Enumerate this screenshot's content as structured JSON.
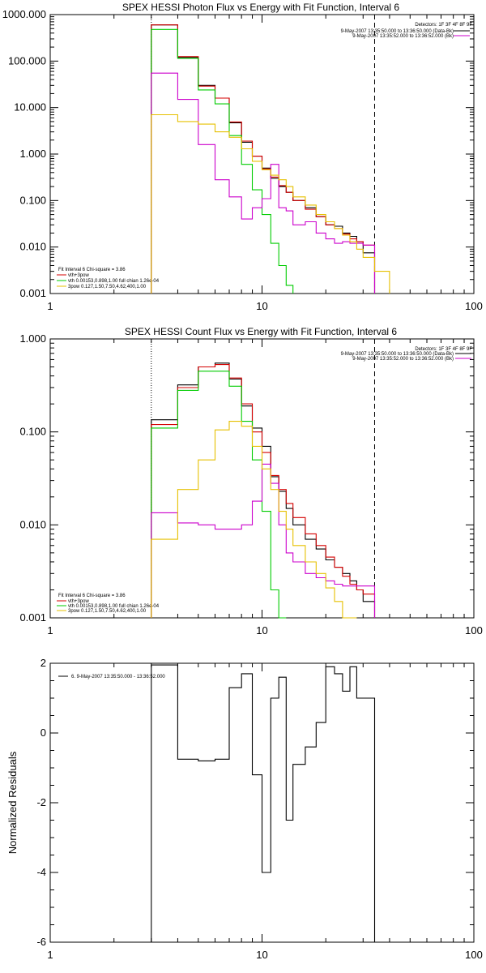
{
  "chart_data": [
    {
      "type": "line",
      "title": "SPEX HESSI Photon Flux vs Energy with Fit Function, Interval 6",
      "xscale": "log",
      "yscale": "log",
      "xlim": [
        1,
        100
      ],
      "ylim": [
        0.001,
        1000
      ],
      "x_ticks": [
        "1",
        "10",
        "100"
      ],
      "y_ticks": [
        "0.001",
        "0.010",
        "0.100",
        "1.000",
        "10.000",
        "100.000",
        "1000.000"
      ],
      "xlabel": "",
      "ylabel": "",
      "info": {
        "detectors": "Detectors: 1F 3F 4F 8F 9F",
        "line1": "9-May-2007 13:35:50.000 to 13:36:50.000 (Data-Bk)",
        "line2": "9-May-2007 13:35:52.000 to 13:36:52.000 (Bk)"
      },
      "legend": {
        "header": "Fit Interval 6   Chi-square = 3.86",
        "items": [
          {
            "label": "vth+3pow",
            "color": "#d40000"
          },
          {
            "label": "vth 0.00153,0.898,1.00   full chian 1.26e-04",
            "color": "#00cc00"
          },
          {
            "label": "3pow 0.127,1.50,7.50,4.62,400,1.00",
            "color": "#e6c000"
          }
        ]
      },
      "vlines": [
        {
          "x": 3,
          "style": "dotted"
        },
        {
          "x": 34,
          "style": "dashed"
        }
      ],
      "series": [
        {
          "color": "#000000",
          "edges": [
            3,
            4,
            5,
            6,
            7,
            8,
            9,
            10,
            11,
            12,
            13,
            14,
            16,
            18,
            20,
            22,
            24,
            26,
            28,
            30,
            34
          ],
          "values": [
            600,
            120,
            30,
            16,
            4.7,
            1.8,
            0.9,
            0.5,
            0.3,
            0.2,
            0.15,
            0.1,
            0.07,
            0.045,
            0.03,
            0.028,
            0.02,
            0.017,
            0.013,
            0.0075
          ]
        },
        {
          "color": "#d40000",
          "edges": [
            3,
            4,
            5,
            6,
            7,
            8,
            9,
            10,
            11,
            12,
            13,
            14,
            16,
            18,
            20,
            22,
            24,
            26,
            28,
            30,
            34
          ],
          "values": [
            600,
            125,
            29,
            16,
            4.9,
            1.9,
            0.9,
            0.48,
            0.32,
            0.21,
            0.15,
            0.1,
            0.065,
            0.045,
            0.03,
            0.025,
            0.019,
            0.015,
            0.013,
            0.011
          ]
        },
        {
          "color": "#00cc00",
          "edges": [
            3,
            4,
            5,
            6,
            7,
            8,
            9,
            10,
            11,
            12,
            13,
            14
          ],
          "values": [
            480,
            115,
            24,
            12,
            2.5,
            0.6,
            0.17,
            0.05,
            0.012,
            0.004,
            0.0015
          ]
        },
        {
          "color": "#cc00cc",
          "edges": [
            3,
            4,
            5,
            6,
            7,
            8,
            9,
            10,
            11,
            12,
            13,
            14,
            16,
            18,
            20,
            22,
            24,
            26,
            28,
            30,
            34
          ],
          "values": [
            55,
            15,
            1.6,
            0.28,
            0.12,
            0.04,
            0.07,
            0.11,
            0.6,
            0.07,
            0.06,
            0.03,
            0.035,
            0.02,
            0.015,
            0.012,
            0.013,
            0.012,
            0.012,
            0.011
          ]
        },
        {
          "color": "#e6c000",
          "edges": [
            3,
            4,
            5,
            6,
            7,
            8,
            9,
            10,
            11,
            12,
            13,
            14,
            16,
            18,
            20,
            22,
            24,
            26,
            28,
            30,
            34,
            40
          ],
          "values": [
            7,
            5,
            4.4,
            3,
            2.3,
            1.3,
            0.7,
            0.46,
            0.35,
            0.28,
            0.2,
            0.12,
            0.08,
            0.05,
            0.035,
            0.025,
            0.018,
            0.013,
            0.009,
            0.006,
            0.003
          ]
        }
      ]
    },
    {
      "type": "line",
      "title": "SPEX HESSI Count Flux vs Energy with Fit Function, Interval 6",
      "xscale": "log",
      "yscale": "log",
      "xlim": [
        1,
        100
      ],
      "ylim": [
        0.001,
        1
      ],
      "x_ticks": [
        "1",
        "10",
        "100"
      ],
      "y_ticks": [
        "0.001",
        "0.010",
        "0.100",
        "1.000"
      ],
      "xlabel": "",
      "ylabel": "",
      "info": {
        "detectors": "Detectors: 1F 3F 4F 8F 9F",
        "line1": "9-May-2007 13:35:50.000 to 13:36:50.000 (Data-Bk)",
        "line2": "9-May-2007 13:35:52.000 to 13:36:52.000 (Bk)"
      },
      "legend": {
        "header": "Fit Interval 6   Chi-square = 3.86",
        "items": [
          {
            "label": "vth+3pow",
            "color": "#d40000"
          },
          {
            "label": "vth 0.00153,0.898,1.00   full chian 1.26e-04",
            "color": "#00cc00"
          },
          {
            "label": "3pow 0.127,1.50,7.50,4.62,400,1.00",
            "color": "#e6c000"
          }
        ]
      },
      "vlines": [
        {
          "x": 3,
          "style": "dotted"
        },
        {
          "x": 34,
          "style": "dashed"
        }
      ],
      "series": [
        {
          "color": "#000000",
          "edges": [
            3,
            4,
            5,
            6,
            7,
            8,
            9,
            10,
            11,
            12,
            13,
            14,
            16,
            18,
            20,
            22,
            24,
            26,
            28,
            30,
            34
          ],
          "values": [
            0.135,
            0.32,
            0.5,
            0.55,
            0.37,
            0.19,
            0.11,
            0.07,
            0.033,
            0.023,
            0.015,
            0.01,
            0.007,
            0.0055,
            0.0042,
            0.0035,
            0.003,
            0.0025,
            0.002,
            0.0015
          ]
        },
        {
          "color": "#d40000",
          "edges": [
            3,
            4,
            5,
            6,
            7,
            8,
            9,
            10,
            11,
            12,
            13,
            14,
            16,
            18,
            20,
            22,
            24,
            26,
            28,
            30,
            34
          ],
          "values": [
            0.12,
            0.3,
            0.5,
            0.53,
            0.38,
            0.2,
            0.1,
            0.06,
            0.034,
            0.024,
            0.017,
            0.012,
            0.008,
            0.006,
            0.0045,
            0.0035,
            0.0028,
            0.0023,
            0.002,
            0.0018
          ]
        },
        {
          "color": "#00cc00",
          "edges": [
            3,
            4,
            5,
            6,
            7,
            8,
            9,
            10,
            11,
            12,
            13
          ],
          "values": [
            0.11,
            0.28,
            0.45,
            0.45,
            0.31,
            0.13,
            0.05,
            0.014,
            0.002,
            0.0009
          ]
        },
        {
          "color": "#cc00cc",
          "edges": [
            3,
            4,
            5,
            6,
            7,
            8,
            9,
            10,
            11,
            12,
            13,
            14,
            16,
            18,
            20,
            22,
            24,
            26,
            28,
            30,
            34
          ],
          "values": [
            0.0135,
            0.0105,
            0.01,
            0.009,
            0.009,
            0.01,
            0.018,
            0.045,
            0.028,
            0.01,
            0.005,
            0.004,
            0.003,
            0.0027,
            0.0025,
            0.0023,
            0.0022,
            0.0022,
            0.0022,
            0.0022
          ]
        },
        {
          "color": "#e6c000",
          "edges": [
            3,
            4,
            5,
            6,
            7,
            8,
            9,
            10,
            11,
            12,
            13,
            14,
            16,
            18,
            20,
            22,
            24,
            26,
            28
          ],
          "values": [
            0.007,
            0.024,
            0.05,
            0.105,
            0.13,
            0.115,
            0.07,
            0.04,
            0.024,
            0.014,
            0.009,
            0.006,
            0.004,
            0.003,
            0.0021,
            0.0015,
            0.001,
            0.0007
          ]
        }
      ]
    },
    {
      "type": "line",
      "title": "",
      "xscale": "log",
      "yscale": "linear",
      "xlim": [
        1,
        100
      ],
      "ylim": [
        -6,
        2
      ],
      "x_ticks": [
        "1",
        "10",
        "100"
      ],
      "y_ticks": [
        "-6",
        "-4",
        "-2",
        "0",
        "2"
      ],
      "xlabel": "",
      "ylabel": "Normalized Residuals",
      "legend": {
        "header": "",
        "items": [
          {
            "label": "6. 9-May-2007 13:35:50.000 - 13:36:52.000",
            "color": "#000000"
          }
        ]
      },
      "series": [
        {
          "color": "#000000",
          "edges": [
            3,
            4,
            5,
            6,
            7,
            8,
            9,
            10,
            11,
            12,
            13,
            14,
            16,
            18,
            20,
            22,
            24,
            26,
            28,
            30,
            34
          ],
          "values": [
            1.95,
            -0.75,
            -0.8,
            -0.75,
            1.3,
            1.7,
            -1.2,
            -4.0,
            1.0,
            1.6,
            -2.5,
            -0.9,
            -0.4,
            0.3,
            1.9,
            1.7,
            1.2,
            1.9,
            1.0,
            1.0
          ]
        }
      ]
    }
  ]
}
